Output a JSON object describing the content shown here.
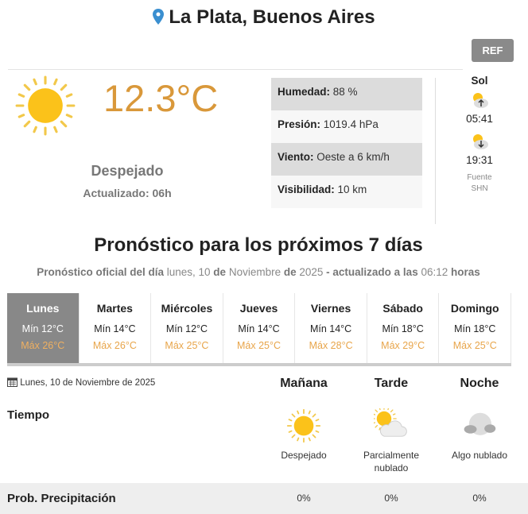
{
  "header": {
    "location": "La Plata, Buenos Aires",
    "ref_button": "REF"
  },
  "current": {
    "temperature": "12.3°C",
    "condition": "Despejado",
    "updated": "Actualizado: 06h",
    "icon": "sun-icon",
    "details": [
      {
        "label": "Humedad:",
        "value": "88 %"
      },
      {
        "label": "Presión:",
        "value": "1019.4 hPa"
      },
      {
        "label": "Viento:",
        "value": "Oeste a 6 km/h"
      },
      {
        "label": "Visibilidad:",
        "value": "10 km"
      }
    ]
  },
  "sun": {
    "title": "Sol",
    "sunrise": "05:41",
    "sunset": "19:31",
    "source_label": "Fuente",
    "source": "SHN"
  },
  "forecast": {
    "title": "Pronóstico para los próximos 7 días",
    "subtitle": {
      "p1": "Pronóstico oficial del día",
      "p2": " lunes, 10 ",
      "p3": "de",
      "p4": " Noviembre ",
      "p5": "de",
      "p6": " 2025 ",
      "p7": "- actualizado a las",
      "p8": " 06:12 ",
      "p9": "horas"
    },
    "days": [
      {
        "name": "Lunes",
        "min": "Mín 12°C",
        "max": "Máx 26°C",
        "selected": true
      },
      {
        "name": "Martes",
        "min": "Mín 14°C",
        "max": "Máx 26°C"
      },
      {
        "name": "Miércoles",
        "min": "Mín 12°C",
        "max": "Máx 25°C"
      },
      {
        "name": "Jueves",
        "min": "Mín 14°C",
        "max": "Máx 25°C"
      },
      {
        "name": "Viernes",
        "min": "Mín 14°C",
        "max": "Máx 28°C"
      },
      {
        "name": "Sábado",
        "min": "Mín 18°C",
        "max": "Máx 29°C"
      },
      {
        "name": "Domingo",
        "min": "Mín 18°C",
        "max": "Máx 25°C"
      }
    ]
  },
  "detail": {
    "date": "Lunes, 10 de Noviembre de 2025",
    "periods": [
      "Mañana",
      "Tarde",
      "Noche"
    ],
    "weather_label": "Tiempo",
    "weather": [
      {
        "icon": "sun-icon",
        "text": "Despejado"
      },
      {
        "icon": "partly-cloudy-icon",
        "text": "Parcialmente nublado"
      },
      {
        "icon": "cloudy-night-icon",
        "text": "Algo nublado"
      }
    ],
    "precip_label": "Prob. Precipitación",
    "precip": [
      "0%",
      "0%",
      "0%"
    ]
  },
  "colors": {
    "accent": "#d9983a",
    "selected_day": "#888888",
    "pin": "#3a8fd0"
  }
}
